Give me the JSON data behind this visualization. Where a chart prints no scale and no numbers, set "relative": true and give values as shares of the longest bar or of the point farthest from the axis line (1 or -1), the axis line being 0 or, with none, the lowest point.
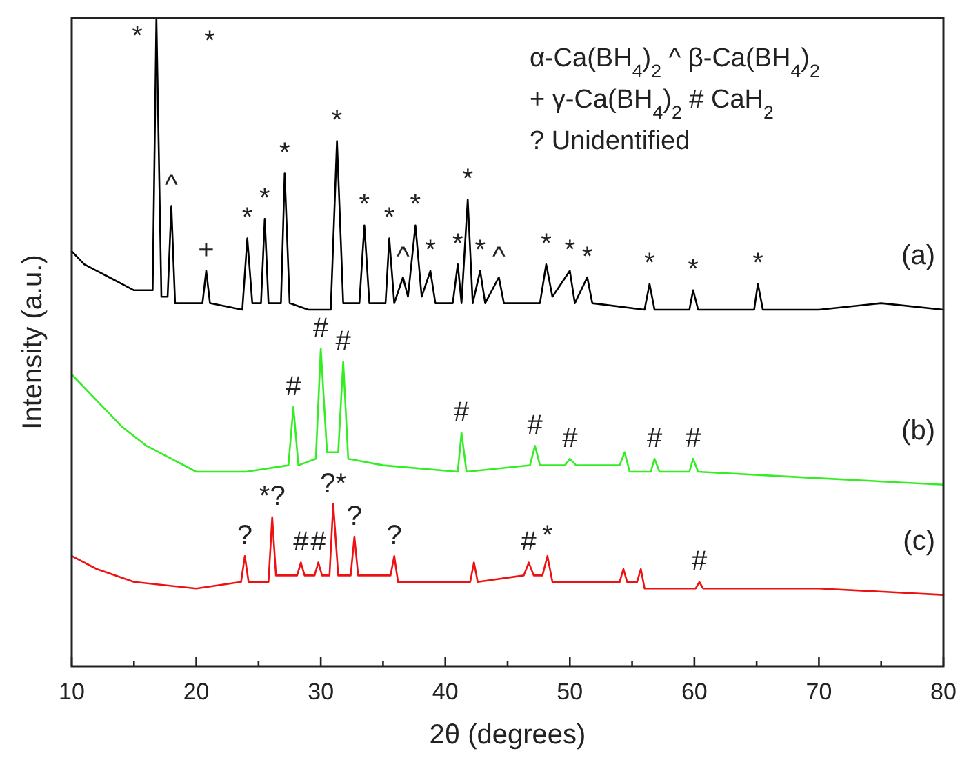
{
  "chart_data": {
    "type": "line",
    "relative": true,
    "xlabel": "2θ (degrees)",
    "ylabel": "Intensity (a.u.)",
    "xlim": [
      10,
      80
    ],
    "xticks": [
      10,
      {
        "value": 15,
        "label": null
      },
      20,
      {
        "value": 25,
        "label": null
      },
      30,
      {
        "value": 35,
        "label": null
      },
      40,
      {
        "value": 45,
        "label": null
      },
      50,
      {
        "value": 55,
        "label": null
      },
      60,
      {
        "value": 65,
        "label": null
      },
      70,
      {
        "value": 75,
        "label": null
      },
      80
    ],
    "grid": false,
    "marker": "none",
    "line_style": "solid",
    "series": [
      {
        "name": "(a)",
        "color": "#000000",
        "x": [
          10,
          11,
          12,
          13,
          14,
          15,
          16,
          16.5,
          16.8,
          17.2,
          17.7,
          18.0,
          18.3,
          19,
          20.5,
          20.8,
          21.1,
          23.7,
          24.1,
          24.5,
          25.2,
          25.5,
          25.8,
          26.8,
          27.1,
          27.5,
          29,
          30.8,
          31.3,
          31.8,
          33.1,
          33.5,
          33.9,
          35.2,
          35.5,
          35.9,
          36.6,
          37.0,
          37.6,
          38.1,
          38.8,
          39.2,
          40.6,
          41.0,
          41.3,
          41.8,
          42.2,
          42.8,
          43.2,
          44.3,
          44.7,
          47.6,
          48.1,
          48.6,
          50.0,
          50.4,
          51.4,
          51.8,
          56.0,
          56.4,
          56.8,
          59.6,
          59.9,
          60.3,
          64.8,
          65.1,
          65.5,
          70,
          75,
          80
        ],
        "values": [
          0.64,
          0.62,
          0.61,
          0.6,
          0.59,
          0.58,
          0.58,
          0.58,
          1.0,
          0.57,
          0.57,
          0.71,
          0.56,
          0.56,
          0.56,
          0.61,
          0.56,
          0.55,
          0.66,
          0.56,
          0.56,
          0.69,
          0.56,
          0.56,
          0.76,
          0.56,
          0.55,
          0.55,
          0.81,
          0.56,
          0.56,
          0.68,
          0.56,
          0.56,
          0.66,
          0.56,
          0.6,
          0.57,
          0.68,
          0.57,
          0.61,
          0.56,
          0.56,
          0.62,
          0.56,
          0.72,
          0.56,
          0.61,
          0.56,
          0.6,
          0.56,
          0.56,
          0.62,
          0.57,
          0.61,
          0.56,
          0.6,
          0.56,
          0.55,
          0.59,
          0.55,
          0.55,
          0.58,
          0.55,
          0.55,
          0.59,
          0.55,
          0.55,
          0.56,
          0.55
        ]
      },
      {
        "name": "(b)",
        "color": "#33ee22",
        "x": [
          10,
          12,
          14,
          16,
          18,
          20,
          24,
          27.4,
          27.8,
          28.2,
          29.6,
          30.0,
          30.5,
          31.4,
          31.8,
          32.2,
          35,
          41.0,
          41.3,
          41.7,
          46.8,
          47.2,
          47.6,
          49.6,
          50.0,
          50.5,
          54.0,
          54.4,
          54.8,
          56.5,
          56.8,
          57.2,
          59.6,
          59.9,
          60.3,
          70,
          80
        ],
        "values": [
          0.45,
          0.41,
          0.37,
          0.34,
          0.32,
          0.3,
          0.3,
          0.31,
          0.4,
          0.31,
          0.32,
          0.49,
          0.33,
          0.33,
          0.47,
          0.32,
          0.31,
          0.3,
          0.36,
          0.3,
          0.31,
          0.34,
          0.31,
          0.31,
          0.32,
          0.31,
          0.31,
          0.33,
          0.3,
          0.3,
          0.32,
          0.3,
          0.3,
          0.32,
          0.3,
          0.29,
          0.28
        ]
      },
      {
        "name": "(c)",
        "color": "#ee1111",
        "x": [
          10,
          12,
          15,
          20,
          23.6,
          23.9,
          24.2,
          25.8,
          26.1,
          26.4,
          28.1,
          28.4,
          28.7,
          29.5,
          29.8,
          30.1,
          30.7,
          31.0,
          31.4,
          32.4,
          32.7,
          33.0,
          35.6,
          35.9,
          36.2,
          42,
          42.3,
          42.6,
          46.3,
          46.7,
          47.1,
          47.8,
          48.2,
          48.6,
          54.0,
          54.3,
          54.6,
          55.4,
          55.7,
          56.0,
          60.1,
          60.4,
          60.7,
          70,
          80
        ],
        "values": [
          0.17,
          0.15,
          0.13,
          0.12,
          0.13,
          0.17,
          0.13,
          0.13,
          0.23,
          0.14,
          0.14,
          0.16,
          0.14,
          0.14,
          0.16,
          0.14,
          0.14,
          0.25,
          0.14,
          0.14,
          0.2,
          0.14,
          0.14,
          0.17,
          0.13,
          0.13,
          0.16,
          0.13,
          0.14,
          0.16,
          0.14,
          0.14,
          0.17,
          0.13,
          0.13,
          0.15,
          0.13,
          0.13,
          0.15,
          0.12,
          0.12,
          0.13,
          0.12,
          0.12,
          0.11
        ]
      }
    ],
    "annotations": [
      "α-Ca(BH$_{4}$)$_{2}$ ^ β-Ca(BH$_{4}$)$_{2}$",
      "+ γ-Ca(BH$_{4}$)$_{2}$ # CaH$_{2}$",
      "? Unidentified",
      "*",
      {
        "text": "*",
        "x": 16.8,
        "y": 1.0
      },
      {
        "text": "^",
        "x": 18.0,
        "y": 0.71
      },
      {
        "text": "+",
        "x": 20.8,
        "y": 0.61
      },
      {
        "text": "*",
        "x": 24.1,
        "y": 0.66
      },
      {
        "text": "*",
        "x": 25.5,
        "y": 0.69
      },
      {
        "text": "*",
        "x": 27.1,
        "y": 0.76
      },
      {
        "text": "*",
        "x": 31.3,
        "y": 0.81
      },
      {
        "text": "*",
        "x": 33.5,
        "y": 0.68
      },
      {
        "text": "*",
        "x": 35.5,
        "y": 0.66
      },
      {
        "text": "^",
        "x": 36.6,
        "y": 0.6
      },
      {
        "text": "*",
        "x": 37.6,
        "y": 0.68
      },
      {
        "text": "*",
        "x": 38.8,
        "y": 0.61
      },
      {
        "text": "*",
        "x": 41.0,
        "y": 0.62
      },
      {
        "text": "*",
        "x": 41.8,
        "y": 0.72
      },
      {
        "text": "*",
        "x": 42.8,
        "y": 0.61
      },
      {
        "text": "^",
        "x": 44.3,
        "y": 0.6
      },
      {
        "text": "*",
        "x": 48.1,
        "y": 0.62
      },
      {
        "text": "*",
        "x": 50.0,
        "y": 0.61
      },
      {
        "text": "*",
        "x": 51.4,
        "y": 0.6
      },
      {
        "text": "*",
        "x": 56.4,
        "y": 0.59
      },
      {
        "text": "*",
        "x": 59.9,
        "y": 0.58
      },
      {
        "text": "*",
        "x": 65.1,
        "y": 0.59
      },
      {
        "text": "#",
        "x": 27.8,
        "y": 0.4
      },
      {
        "text": "#",
        "x": 30.0,
        "y": 0.49
      },
      {
        "text": "#",
        "x": 31.8,
        "y": 0.47
      },
      {
        "text": "#",
        "x": 41.3,
        "y": 0.36
      },
      {
        "text": "#",
        "x": 47.2,
        "y": 0.34
      },
      {
        "text": "#",
        "x": 50.0,
        "y": 0.32
      },
      {
        "text": "#",
        "x": 56.8,
        "y": 0.32
      },
      {
        "text": "#",
        "x": 59.9,
        "y": 0.32
      },
      {
        "text": "?",
        "x": 23.9,
        "y": 0.17
      },
      {
        "text": "*?",
        "x": 26.1,
        "y": 0.23
      },
      {
        "text": "#",
        "x": 28.4,
        "y": 0.16
      },
      {
        "text": "#",
        "x": 29.8,
        "y": 0.16
      },
      {
        "text": "?*",
        "x": 31.0,
        "y": 0.25
      },
      {
        "text": "?",
        "x": 32.7,
        "y": 0.2
      },
      {
        "text": "?",
        "x": 35.9,
        "y": 0.17
      },
      {
        "text": "#",
        "x": 46.7,
        "y": 0.16
      },
      {
        "text": "*",
        "x": 48.2,
        "y": 0.17
      },
      {
        "text": "#",
        "x": 60.4,
        "y": 0.13
      }
    ]
  }
}
